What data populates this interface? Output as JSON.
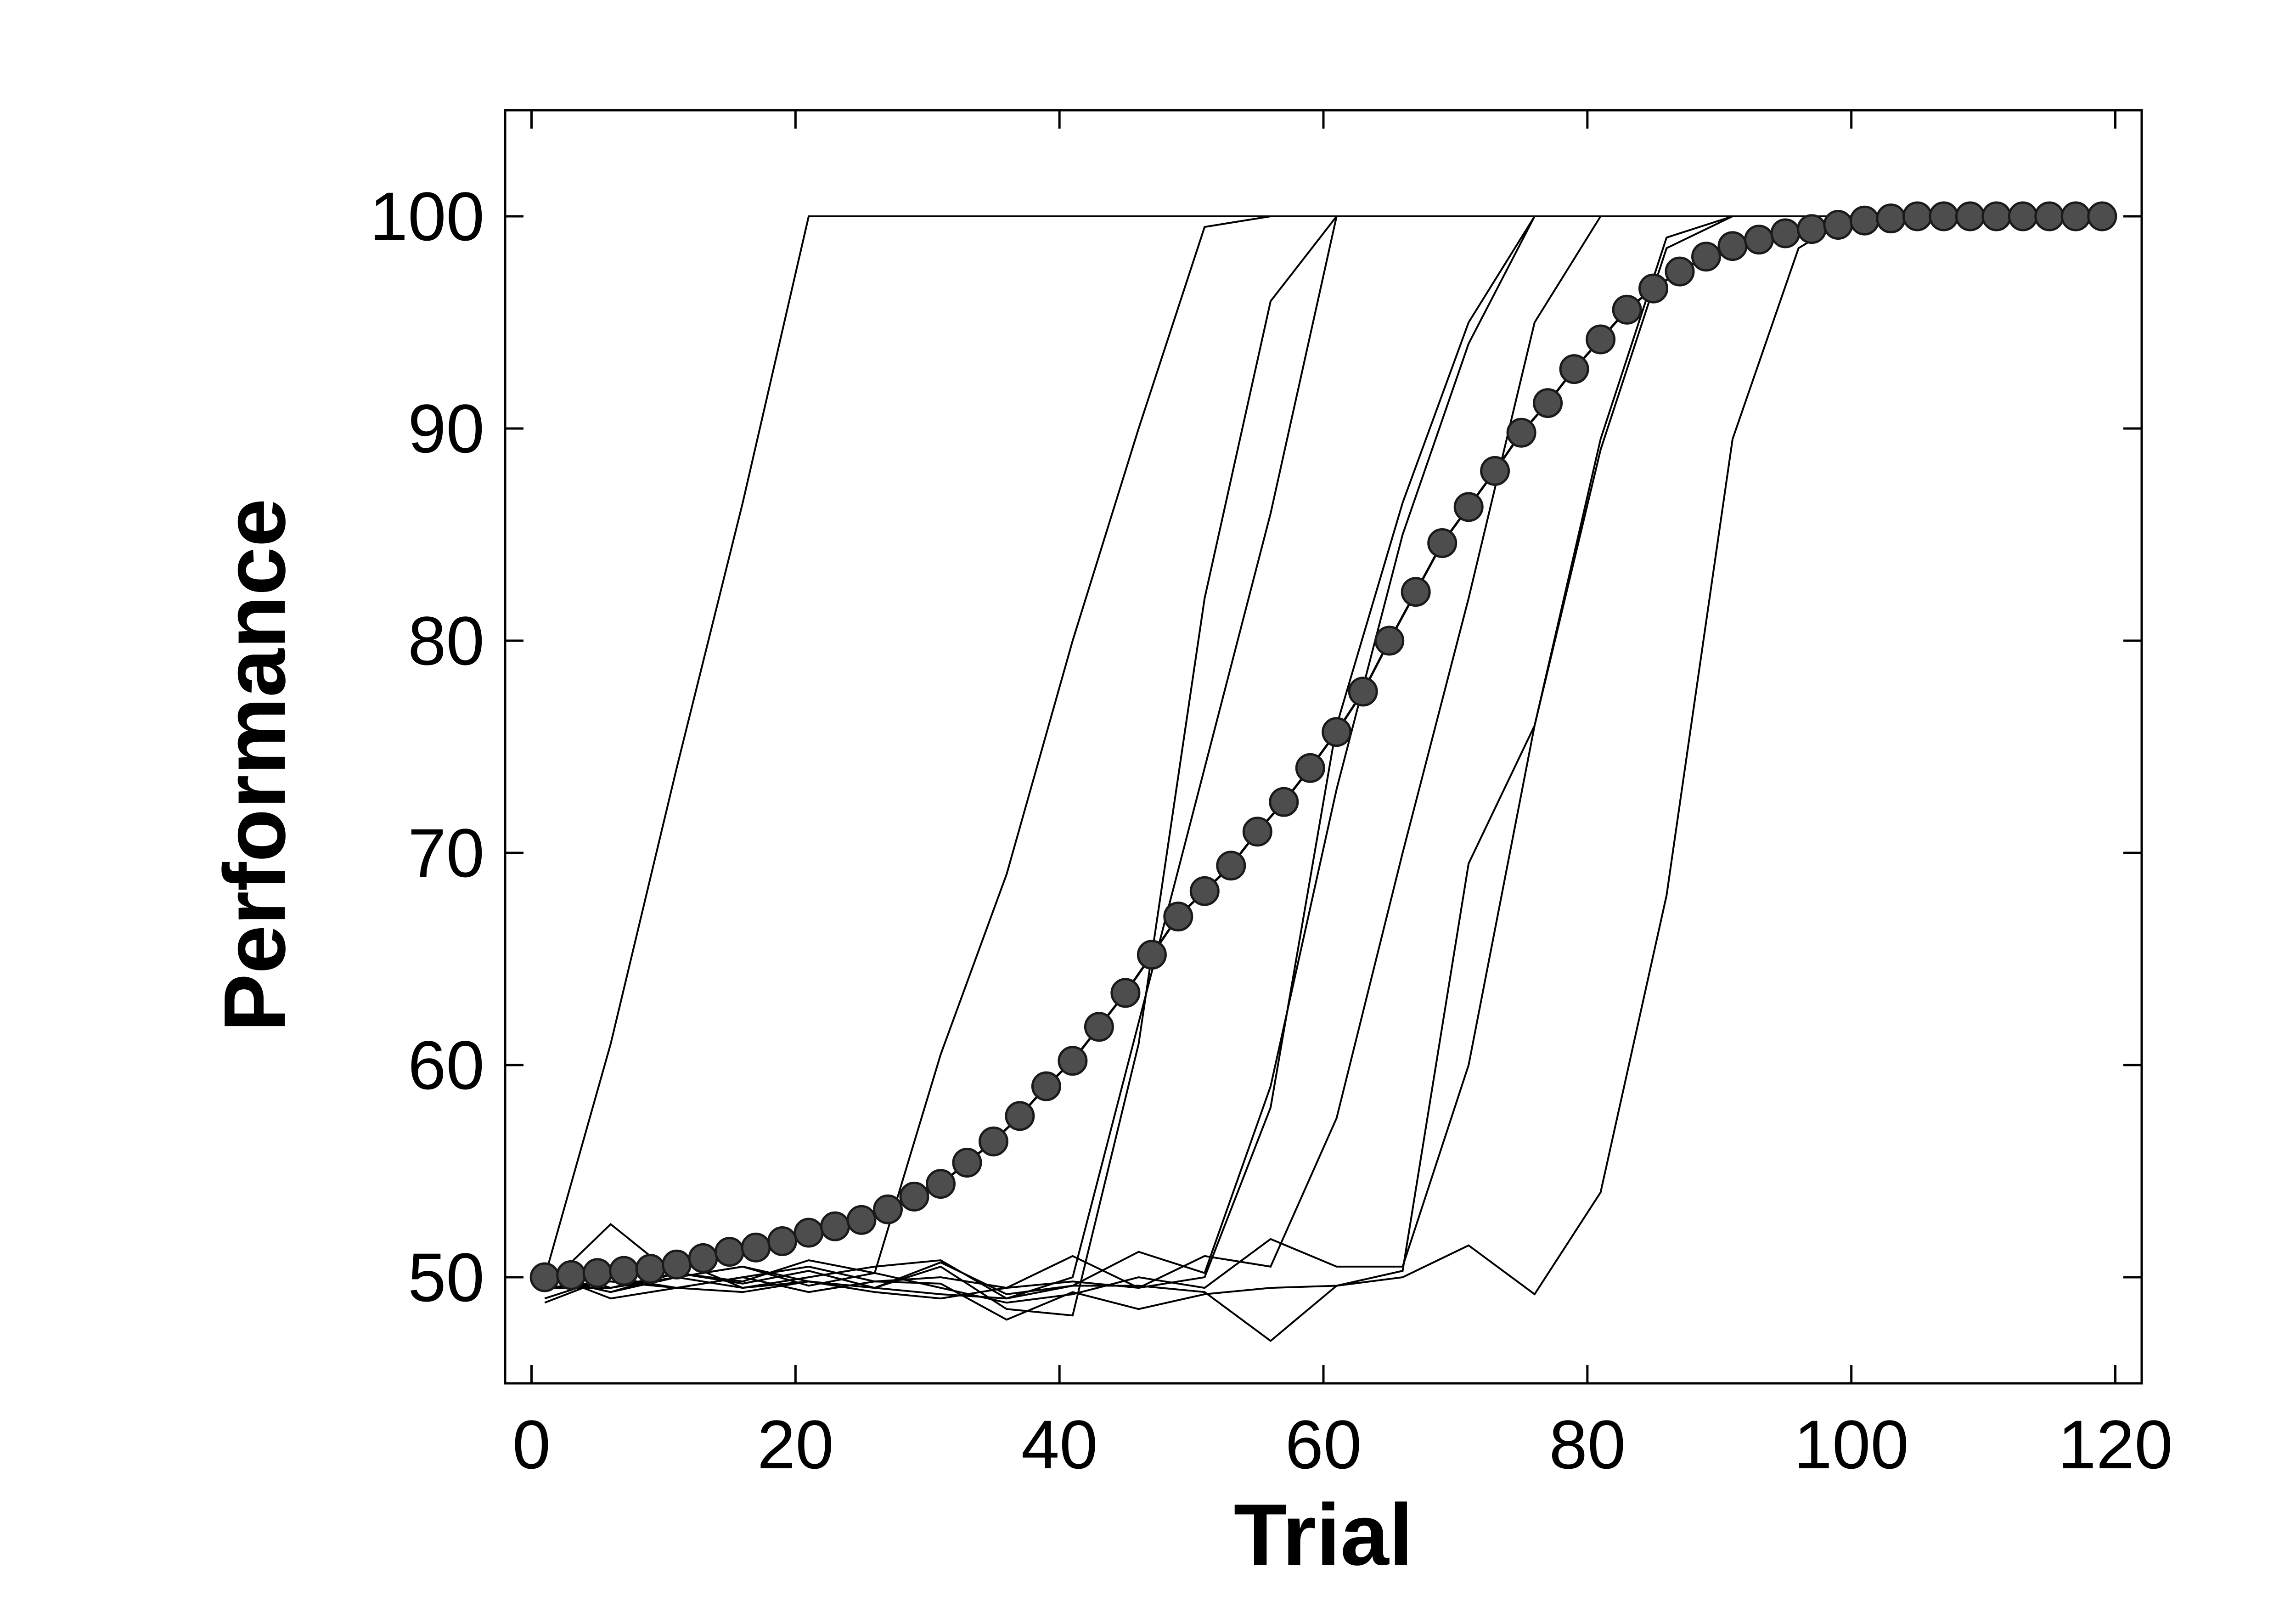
{
  "chart_data": {
    "type": "line",
    "xlabel": "Trial",
    "ylabel": "Performance",
    "xlim": [
      -2,
      122
    ],
    "ylim": [
      45,
      105
    ],
    "xticks": [
      0,
      20,
      40,
      60,
      80,
      100,
      120
    ],
    "yticks": [
      50,
      60,
      70,
      80,
      90,
      100
    ],
    "colors": {
      "axis": "#000000",
      "line": "#000000",
      "marker_fill": "#4d4d4d",
      "marker_edge": "#1a1a1a"
    },
    "grid": false,
    "series": [
      {
        "x": [
          1,
          6,
          11,
          16,
          21,
          26,
          31,
          36,
          41,
          46,
          51,
          56,
          61,
          66,
          71,
          76,
          81,
          86,
          91,
          96,
          100
        ],
        "y": [
          50,
          61,
          74,
          86.5,
          100,
          100,
          100,
          100,
          100,
          100,
          100,
          100,
          100,
          100,
          100,
          100,
          100,
          100,
          100,
          100,
          100
        ]
      },
      {
        "x": [
          1,
          6,
          11,
          16,
          21,
          26,
          31,
          36,
          41,
          46,
          51,
          56,
          61,
          66,
          71,
          76,
          81,
          86,
          91,
          96,
          100
        ],
        "y": [
          49.5,
          49.5,
          50.2,
          49.8,
          50.8,
          50.2,
          60.5,
          69,
          80,
          90,
          99.5,
          100,
          100,
          100,
          100,
          100,
          100,
          100,
          100,
          100,
          100
        ]
      },
      {
        "x": [
          1,
          6,
          11,
          16,
          21,
          26,
          31,
          36,
          41,
          46,
          51,
          56,
          61,
          66,
          71,
          76,
          81,
          86,
          91,
          96,
          100
        ],
        "y": [
          49,
          50,
          50.8,
          49.5,
          50,
          50.5,
          50.8,
          49,
          50,
          62,
          74,
          86,
          100,
          100,
          100,
          100,
          100,
          100,
          100,
          100,
          100
        ]
      },
      {
        "x": [
          1,
          6,
          11,
          16,
          21,
          26,
          31,
          36,
          41,
          46,
          51,
          56,
          61,
          66,
          71,
          76,
          81,
          86,
          91,
          96,
          100
        ],
        "y": [
          50.5,
          49.5,
          50,
          50.5,
          49.8,
          49.5,
          50.5,
          48.5,
          48.2,
          61,
          82,
          96,
          100,
          100,
          100,
          100,
          100,
          100,
          100,
          100,
          100
        ]
      },
      {
        "x": [
          1,
          6,
          11,
          16,
          21,
          26,
          31,
          36,
          41,
          46,
          51,
          56,
          61,
          66,
          71,
          76,
          81,
          86,
          91,
          96,
          100
        ],
        "y": [
          48.8,
          50,
          49.5,
          50,
          50.5,
          49.8,
          50,
          49.5,
          51,
          49.5,
          50,
          58,
          76,
          86.5,
          95,
          100,
          100,
          100,
          100,
          100,
          100
        ]
      },
      {
        "x": [
          1,
          6,
          11,
          16,
          21,
          26,
          31,
          36,
          41,
          46,
          51,
          56,
          61,
          66,
          71,
          76,
          81,
          86,
          91,
          96,
          100
        ],
        "y": [
          50,
          49.3,
          50.2,
          49.7,
          50.3,
          49.5,
          50.7,
          49.2,
          49.6,
          51.2,
          50.2,
          59,
          73,
          85,
          94,
          100,
          100,
          100,
          100,
          100,
          100
        ]
      },
      {
        "x": [
          1,
          6,
          11,
          16,
          21,
          26,
          31,
          36,
          41,
          46,
          51,
          56,
          61,
          66,
          71,
          76,
          81,
          86,
          91,
          96,
          100
        ],
        "y": [
          49.5,
          52.5,
          50,
          49.5,
          49.8,
          49.3,
          49,
          49.5,
          49.8,
          49.5,
          51,
          50.5,
          57.5,
          70,
          82,
          95,
          100,
          100,
          100,
          100,
          100
        ]
      },
      {
        "x": [
          1,
          6,
          11,
          16,
          21,
          26,
          31,
          36,
          41,
          46,
          51,
          56,
          61,
          66,
          71,
          76,
          81,
          86,
          91,
          96,
          100
        ],
        "y": [
          50,
          49.3,
          50,
          50.5,
          49.6,
          50.2,
          49.5,
          48.8,
          49.2,
          50,
          49.5,
          51.8,
          50.5,
          50.5,
          60,
          76,
          89.5,
          99,
          100,
          100,
          100
        ]
      },
      {
        "x": [
          1,
          6,
          11,
          16,
          21,
          26,
          31,
          36,
          41,
          46,
          51,
          56,
          61,
          66,
          71,
          76,
          81,
          86,
          91,
          96,
          100
        ],
        "y": [
          50.2,
          49,
          49.5,
          49.3,
          49.8,
          49.5,
          49.2,
          49,
          49.6,
          49.6,
          49.3,
          47,
          49.6,
          50.3,
          69.5,
          76,
          89,
          98.5,
          100,
          100,
          100
        ]
      },
      {
        "x": [
          1,
          6,
          11,
          16,
          21,
          26,
          31,
          36,
          41,
          46,
          51,
          56,
          61,
          66,
          71,
          76,
          81,
          86,
          91,
          96,
          100
        ],
        "y": [
          49.5,
          49.8,
          49.5,
          50,
          49.3,
          49.8,
          49.7,
          48,
          49.3,
          48.5,
          49.2,
          49.5,
          49.6,
          50,
          51.5,
          49.2,
          54,
          68,
          89.5,
          98.5,
          100
        ]
      }
    ],
    "mean": {
      "x": [
        1,
        3,
        5,
        7,
        9,
        11,
        13,
        15,
        17,
        19,
        21,
        23,
        25,
        27,
        29,
        31,
        33,
        35,
        37,
        39,
        41,
        43,
        45,
        47,
        49,
        51,
        53,
        55,
        57,
        59,
        61,
        63,
        65,
        67,
        69,
        71,
        73,
        75,
        77,
        79,
        81,
        83,
        85,
        87,
        89,
        91,
        93,
        95,
        97,
        99,
        101,
        103,
        105,
        107,
        109,
        111,
        113,
        115,
        117,
        119
      ],
      "y": [
        50,
        50.1,
        50.2,
        50.3,
        50.4,
        50.6,
        50.9,
        51.2,
        51.4,
        51.7,
        52.1,
        52.4,
        52.7,
        53.2,
        53.8,
        54.4,
        55.4,
        56.4,
        57.6,
        59,
        60.2,
        61.8,
        63.4,
        65.2,
        67,
        68.2,
        69.4,
        71,
        72.4,
        74,
        75.7,
        77.6,
        80,
        82.3,
        84.6,
        86.3,
        88,
        89.8,
        91.2,
        92.8,
        94.2,
        95.6,
        96.6,
        97.4,
        98.1,
        98.6,
        98.9,
        99.2,
        99.4,
        99.6,
        99.8,
        99.9,
        100,
        100,
        100,
        100,
        100,
        100,
        100,
        100
      ]
    }
  }
}
